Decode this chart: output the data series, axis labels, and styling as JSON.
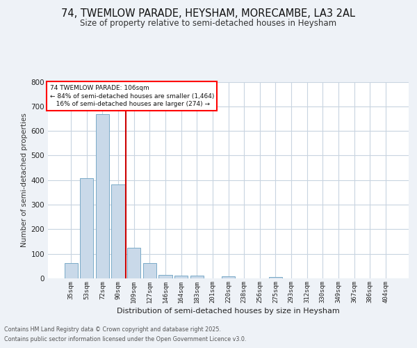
{
  "title_line1": "74, TWEMLOW PARADE, HEYSHAM, MORECAMBE, LA3 2AL",
  "title_line2": "Size of property relative to semi-detached houses in Heysham",
  "xlabel": "Distribution of semi-detached houses by size in Heysham",
  "ylabel": "Number of semi-detached properties",
  "bin_labels": [
    "35sqm",
    "53sqm",
    "72sqm",
    "90sqm",
    "109sqm",
    "127sqm",
    "146sqm",
    "164sqm",
    "183sqm",
    "201sqm",
    "220sqm",
    "238sqm",
    "256sqm",
    "275sqm",
    "293sqm",
    "312sqm",
    "330sqm",
    "349sqm",
    "367sqm",
    "386sqm",
    "404sqm"
  ],
  "bin_values": [
    63,
    408,
    668,
    383,
    125,
    63,
    15,
    12,
    12,
    0,
    8,
    0,
    0,
    5,
    0,
    0,
    0,
    0,
    0,
    0,
    0
  ],
  "bar_color": "#c9d9e9",
  "bar_edge_color": "#7aaac8",
  "red_line_color": "#cc0000",
  "red_line_x": 3.5,
  "annotation_line1": "74 TWEMLOW PARADE: 106sqm",
  "annotation_line2": "← 84% of semi-detached houses are smaller (1,464)",
  "annotation_line3": "   16% of semi-detached houses are larger (274) →",
  "footer_line1": "Contains HM Land Registry data © Crown copyright and database right 2025.",
  "footer_line2": "Contains public sector information licensed under the Open Government Licence v3.0.",
  "bg_color": "#eef2f7",
  "plot_bg_color": "#ffffff",
  "grid_color": "#c8d4e0",
  "ylim": [
    0,
    800
  ],
  "yticks": [
    0,
    100,
    200,
    300,
    400,
    500,
    600,
    700,
    800
  ]
}
